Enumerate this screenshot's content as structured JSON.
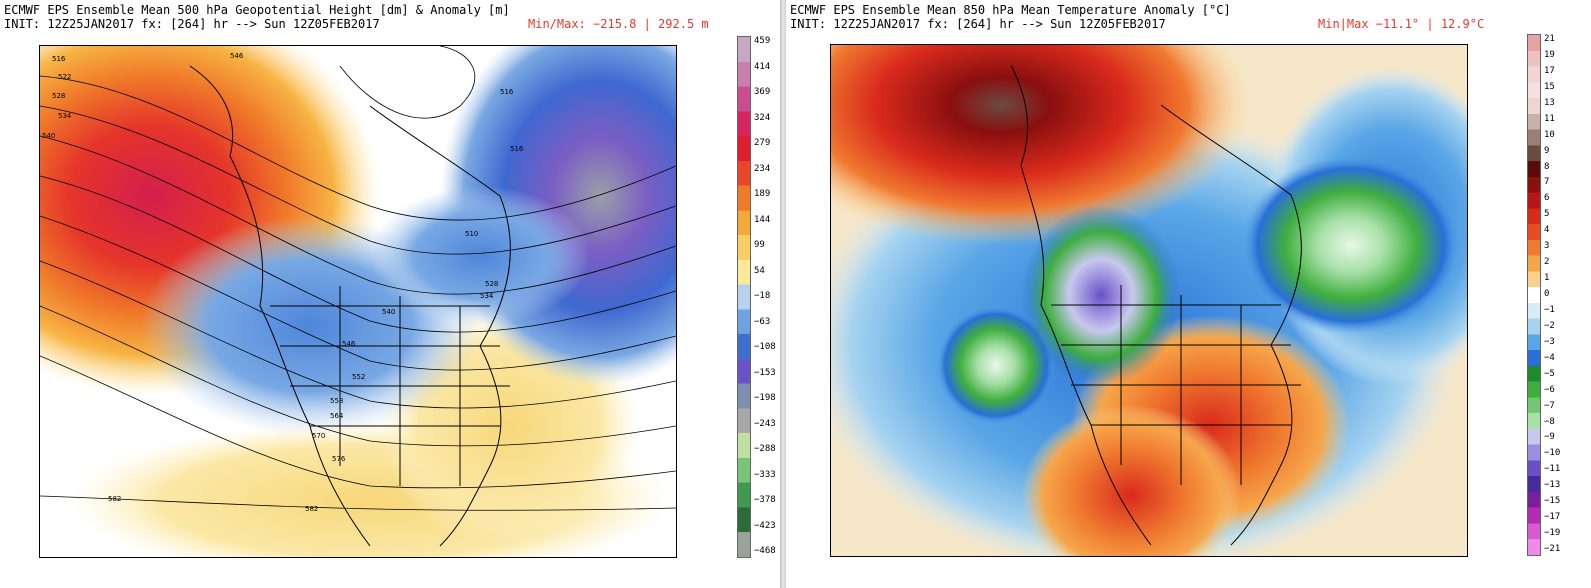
{
  "left": {
    "title": "ECMWF EPS Ensemble Mean 500 hPa Geopotential Height [dm] & Anomaly [m]",
    "init": "INIT: 12Z25JAN2017 fx: [264] hr --> Sun 12Z05FEB2017",
    "minmax": "Min/Max: −215.8 | 292.5 m",
    "colorbar_ticks": [
      "459",
      "414",
      "369",
      "324",
      "279",
      "234",
      "189",
      "144",
      "99",
      "54",
      "−18",
      "−63",
      "−108",
      "−153",
      "−198",
      "−243",
      "−288",
      "−333",
      "−378",
      "−423",
      "−468"
    ],
    "colorbar_colors": [
      "#c9a6c4",
      "#c77fb0",
      "#c94c8e",
      "#d8245e",
      "#df1e2e",
      "#e8452a",
      "#f07a2a",
      "#f5a83a",
      "#f8cf62",
      "#fbe89a",
      "#b8d2ee",
      "#6ea3df",
      "#3d6fd0",
      "#6a52c8",
      "#7f8fb0",
      "#a8a8a8",
      "#bfe0a0",
      "#79c479",
      "#3f9a4f",
      "#2c6b39",
      "#9aa39a"
    ],
    "contour_labels": [
      "516",
      "522",
      "528",
      "534",
      "540",
      "546",
      "516",
      "516",
      "510",
      "528",
      "534",
      "540",
      "546",
      "552",
      "558",
      "564",
      "570",
      "576",
      "582",
      "582"
    ]
  },
  "right": {
    "title": "ECMWF EPS Ensemble Mean 850 hPa Mean Temperature Anomaly [°C]",
    "init": "INIT: 12Z25JAN2017 fx: [264] hr --> Sun 12Z05FEB2017",
    "minmax": "Min|Max −11.1° | 12.9°C",
    "colorbar_ticks": [
      "21",
      "19",
      "17",
      "15",
      "13",
      "11",
      "10",
      "9",
      "8",
      "7",
      "6",
      "5",
      "4",
      "3",
      "2",
      "1",
      "0",
      "−1",
      "−2",
      "−3",
      "−4",
      "−5",
      "−6",
      "−7",
      "−8",
      "−9",
      "−10",
      "−11",
      "−13",
      "−15",
      "−17",
      "−19",
      "−21"
    ],
    "colorbar_colors": [
      "#e7a3a3",
      "#efc0c0",
      "#f3d3d3",
      "#f6e0e0",
      "#eed6d0",
      "#c9b1a8",
      "#9c7f74",
      "#6b4b40",
      "#5a0c0c",
      "#8a0f0f",
      "#b81616",
      "#d92a1c",
      "#e84b22",
      "#f07a30",
      "#f6a64a",
      "#f9d28a",
      "#ffffff",
      "#d8ecf8",
      "#a6d3f0",
      "#5aa6e6",
      "#2a6fd8",
      "#1c8c2a",
      "#3fae3f",
      "#72c872",
      "#a8e0a8",
      "#c8c8ee",
      "#9a8ee0",
      "#6b4fc8",
      "#4a2a9a",
      "#7a1ea0",
      "#b52ab5",
      "#d85ad0",
      "#f08ae8"
    ]
  }
}
